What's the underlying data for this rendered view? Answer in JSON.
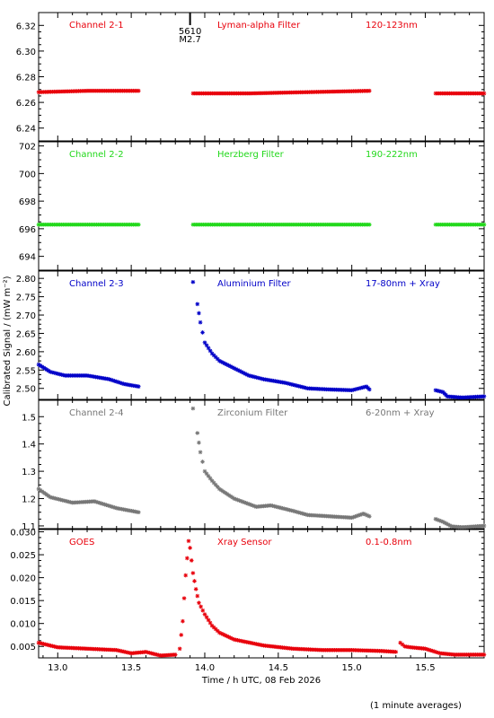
{
  "figure": {
    "xlabel": "Time / h UTC, 08 Feb 2026",
    "ylabel": "Calibrated Signal / (mW m⁻²)",
    "note": "(1 minute averages)",
    "xlim": [
      12.87,
      15.9
    ],
    "xticks": [
      13.0,
      13.5,
      14.0,
      14.5,
      15.0,
      15.5
    ],
    "xtick_labels": [
      "13.0",
      "13.5",
      "14.0",
      "14.5",
      "15.0",
      "15.5"
    ],
    "flare_marker": {
      "x": 13.9,
      "label_top": "5610",
      "label_bottom": "M2.7"
    }
  },
  "chart_data": [
    {
      "type": "scatter",
      "color": "#e8000b",
      "channel": "Channel 2-1",
      "filter": "Lyman-alpha Filter",
      "band": "120-123nm",
      "ylim": [
        6.23,
        6.33
      ],
      "yticks": [
        6.24,
        6.26,
        6.28,
        6.3,
        6.32
      ],
      "ytick_labels": [
        "6.24",
        "6.26",
        "6.28",
        "6.30",
        "6.32"
      ],
      "segments": [
        {
          "x": [
            12.87,
            13.2,
            13.55
          ],
          "y": [
            6.268,
            6.269,
            6.269
          ]
        },
        {
          "x": [
            13.92,
            14.3,
            14.7,
            15.12
          ],
          "y": [
            6.267,
            6.267,
            6.268,
            6.269
          ]
        },
        {
          "x": [
            15.57,
            15.9
          ],
          "y": [
            6.267,
            6.267
          ]
        }
      ]
    },
    {
      "type": "scatter",
      "color": "#22d81b",
      "channel": "Channel 2-2",
      "filter": "Herzberg Filter",
      "band": "190-222nm",
      "ylim": [
        693.0,
        702.3
      ],
      "yticks": [
        694,
        696,
        698,
        700,
        702
      ],
      "ytick_labels": [
        "694",
        "696",
        "698",
        "700",
        "702"
      ],
      "segments": [
        {
          "x": [
            12.87,
            13.55
          ],
          "y": [
            696.3,
            696.3
          ]
        },
        {
          "x": [
            13.92,
            15.12
          ],
          "y": [
            696.3,
            696.3
          ]
        },
        {
          "x": [
            15.57,
            15.9
          ],
          "y": [
            696.3,
            696.3
          ]
        }
      ]
    },
    {
      "type": "scatter",
      "color": "#0000c8",
      "channel": "Channel 2-3",
      "filter": "Aluminium Filter",
      "band": "17-80nm + Xray",
      "ylim": [
        2.47,
        2.82
      ],
      "yticks": [
        2.5,
        2.55,
        2.6,
        2.65,
        2.7,
        2.75,
        2.8
      ],
      "ytick_labels": [
        "2.50",
        "2.55",
        "2.60",
        "2.65",
        "2.70",
        "2.75",
        "2.80"
      ],
      "segments": [
        {
          "x": [
            12.87,
            12.95,
            13.05,
            13.2,
            13.35,
            13.45,
            13.55
          ],
          "y": [
            2.565,
            2.545,
            2.535,
            2.535,
            2.525,
            2.512,
            2.505
          ]
        },
        {
          "x": [
            13.95,
            13.97,
            14.0,
            14.05,
            14.1,
            14.2,
            14.3,
            14.4,
            14.55,
            14.7,
            14.85,
            15.0,
            15.1,
            15.12
          ],
          "y": [
            2.73,
            2.68,
            2.625,
            2.595,
            2.575,
            2.555,
            2.535,
            2.525,
            2.515,
            2.5,
            2.497,
            2.495,
            2.505,
            2.497
          ]
        },
        {
          "x": [
            15.57,
            15.62,
            15.65,
            15.75,
            15.9
          ],
          "y": [
            2.495,
            2.49,
            2.478,
            2.475,
            2.478
          ]
        }
      ],
      "peak": {
        "x": 13.92,
        "y": 2.79
      }
    },
    {
      "type": "scatter",
      "color": "#777777",
      "channel": "Channel 2-4",
      "filter": "Zirconium Filter",
      "band": "6-20nm + Xray",
      "ylim": [
        1.09,
        1.56
      ],
      "yticks": [
        1.1,
        1.2,
        1.3,
        1.4,
        1.5
      ],
      "ytick_labels": [
        "1.1",
        "1.2",
        "1.3",
        "1.4",
        "1.5"
      ],
      "segments": [
        {
          "x": [
            12.87,
            12.95,
            13.1,
            13.25,
            13.4,
            13.55
          ],
          "y": [
            1.235,
            1.205,
            1.185,
            1.19,
            1.165,
            1.15
          ]
        },
        {
          "x": [
            13.95,
            13.97,
            14.0,
            14.05,
            14.1,
            14.2,
            14.35,
            14.45,
            14.6,
            14.7,
            14.85,
            15.0,
            15.08,
            15.12
          ],
          "y": [
            1.44,
            1.37,
            1.3,
            1.265,
            1.235,
            1.2,
            1.17,
            1.175,
            1.155,
            1.14,
            1.135,
            1.13,
            1.145,
            1.135
          ]
        },
        {
          "x": [
            15.57,
            15.62,
            15.68,
            15.75,
            15.9
          ],
          "y": [
            1.125,
            1.115,
            1.098,
            1.095,
            1.1
          ]
        }
      ],
      "peak": {
        "x": 13.92,
        "y": 1.53
      }
    },
    {
      "type": "scatter",
      "color": "#e8000b",
      "channel": "GOES",
      "filter": "Xray Sensor",
      "band": "0.1-0.8nm",
      "ylim": [
        0.0025,
        0.0305
      ],
      "yticks": [
        0.005,
        0.01,
        0.015,
        0.02,
        0.025,
        0.03
      ],
      "ytick_labels": [
        "0.005",
        "0.010",
        "0.015",
        "0.020",
        "0.025",
        "0.030"
      ],
      "segments": [
        {
          "x": [
            12.87,
            13.0,
            13.2,
            13.4,
            13.5,
            13.6,
            13.7,
            13.8
          ],
          "y": [
            0.0058,
            0.0048,
            0.0045,
            0.0042,
            0.0035,
            0.0038,
            0.003,
            0.0032
          ]
        },
        {
          "x": [
            13.83,
            13.85,
            13.87,
            13.89,
            13.9,
            13.92,
            13.94,
            13.96,
            14.0,
            14.05,
            14.1,
            14.2,
            14.4,
            14.6,
            14.8,
            15.0,
            15.2,
            15.3
          ],
          "y": [
            0.0045,
            0.0105,
            0.0205,
            0.028,
            0.0265,
            0.021,
            0.0175,
            0.0145,
            0.012,
            0.0095,
            0.008,
            0.0065,
            0.0052,
            0.0045,
            0.0042,
            0.0042,
            0.004,
            0.0038
          ]
        },
        {
          "x": [
            15.33,
            15.36,
            15.4,
            15.5,
            15.6,
            15.7,
            15.9
          ],
          "y": [
            0.0058,
            0.005,
            0.0048,
            0.0045,
            0.0035,
            0.0032,
            0.0032
          ]
        }
      ]
    }
  ]
}
